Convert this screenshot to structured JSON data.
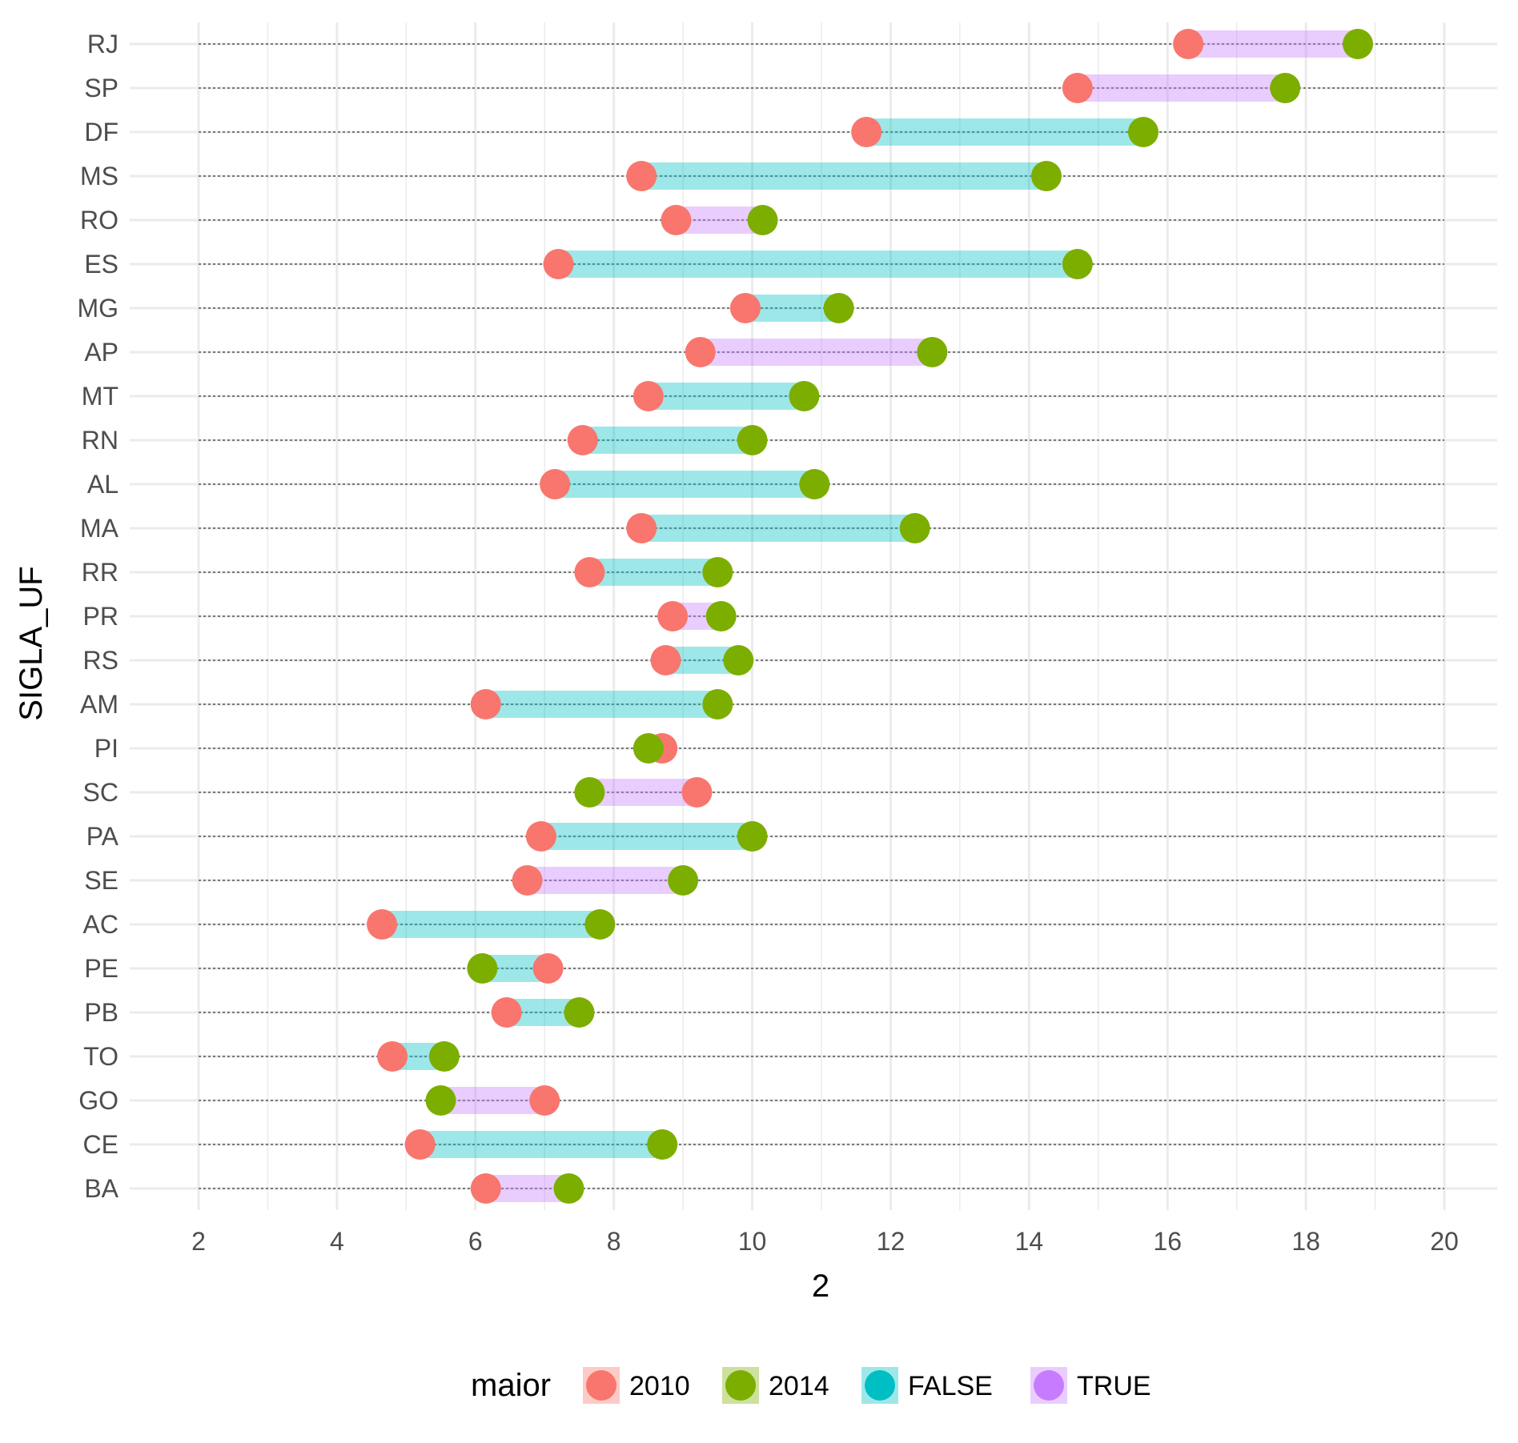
{
  "chart_data": {
    "type": "dumbbell",
    "xlabel": "2",
    "ylabel": "SIGLA_UF",
    "xlim": [
      1,
      21
    ],
    "x_ticks": [
      2,
      4,
      6,
      8,
      10,
      12,
      14,
      16,
      18,
      20
    ],
    "x_tick_labels": [
      "2",
      "4",
      "6",
      "8",
      "10",
      "12",
      "14",
      "16",
      "18",
      "20"
    ],
    "grid": true,
    "legend_position": "bottom",
    "legend": {
      "title": "maior",
      "items": [
        {
          "label": "2010",
          "kind": "point",
          "color": "#F8766D",
          "key_color": "#F8766D"
        },
        {
          "label": "2014",
          "kind": "point",
          "color": "#7CAE00",
          "key_color": "#7CAE00"
        },
        {
          "label": "FALSE",
          "kind": "segment",
          "color": "#00BFC4",
          "key_color": "#00BFC4"
        },
        {
          "label": "TRUE",
          "kind": "segment",
          "color": "#C77CFF",
          "key_color": "#C77CFF"
        }
      ]
    },
    "colors": {
      "y2010": "#F8766D",
      "y2014": "#7CAE00",
      "false_segment": "#00BFC4",
      "true_segment": "#C77CFF"
    },
    "categories": [
      "RJ",
      "SP",
      "DF",
      "MS",
      "RO",
      "ES",
      "MG",
      "AP",
      "MT",
      "RN",
      "AL",
      "MA",
      "RR",
      "PR",
      "RS",
      "AM",
      "PI",
      "SC",
      "PA",
      "SE",
      "AC",
      "PE",
      "PB",
      "TO",
      "GO",
      "CE",
      "BA"
    ],
    "series": [
      {
        "name": "2010",
        "values": [
          16.3,
          14.7,
          11.65,
          8.4,
          8.9,
          7.2,
          9.9,
          9.25,
          8.5,
          7.55,
          7.15,
          8.4,
          7.65,
          8.85,
          8.75,
          6.15,
          8.7,
          9.2,
          6.95,
          6.75,
          4.65,
          7.05,
          6.45,
          4.8,
          7.0,
          5.2,
          6.15
        ]
      },
      {
        "name": "2014",
        "values": [
          18.75,
          17.7,
          15.65,
          14.25,
          10.15,
          14.7,
          11.25,
          12.6,
          10.75,
          10.0,
          10.9,
          12.35,
          9.5,
          9.55,
          9.8,
          9.5,
          8.5,
          7.65,
          10.0,
          9.0,
          7.8,
          6.1,
          7.5,
          5.55,
          5.5,
          8.7,
          7.35
        ]
      }
    ],
    "segment_group": [
      "TRUE",
      "TRUE",
      "FALSE",
      "FALSE",
      "TRUE",
      "FALSE",
      "FALSE",
      "TRUE",
      "FALSE",
      "FALSE",
      "FALSE",
      "FALSE",
      "FALSE",
      "TRUE",
      "FALSE",
      "FALSE",
      "FALSE",
      "TRUE",
      "FALSE",
      "TRUE",
      "FALSE",
      "FALSE",
      "FALSE",
      "FALSE",
      "TRUE",
      "FALSE",
      "TRUE"
    ]
  }
}
